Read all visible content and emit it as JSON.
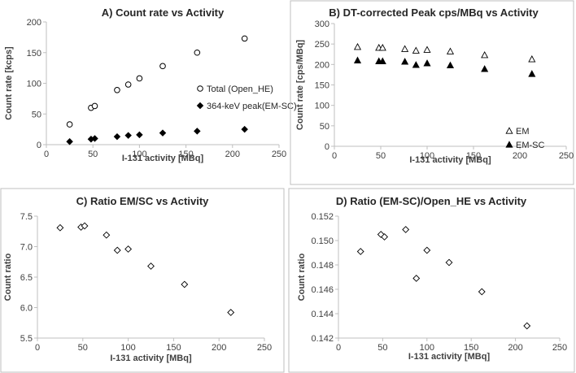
{
  "chart_data": [
    {
      "panel": "A",
      "type": "scatter",
      "title": "A)  Count rate vs Activity",
      "xlabel": "I-131 activity [MBq]",
      "ylabel": "Count rate [kcps]",
      "xlim": [
        0,
        250
      ],
      "ylim": [
        0,
        200
      ],
      "xticks": [
        0,
        50,
        100,
        150,
        200,
        250
      ],
      "yticks": [
        0,
        50,
        100,
        150,
        200
      ],
      "ytick_decimals": 0,
      "legend": "center-right",
      "series": [
        {
          "name": "Total (Open_HE)",
          "marker": "circle-open",
          "x": [
            25,
            48,
            52,
            76,
            88,
            100,
            125,
            162,
            213
          ],
          "y": [
            33,
            60,
            63,
            89,
            98,
            108,
            128,
            150,
            173
          ]
        },
        {
          "name": "364-keV peak(EM-SC)",
          "marker": "diamond-filled",
          "x": [
            25,
            48,
            52,
            76,
            88,
            100,
            125,
            162,
            213
          ],
          "y": [
            5,
            9,
            10,
            13,
            15,
            16,
            19,
            22,
            25
          ]
        }
      ]
    },
    {
      "panel": "B",
      "type": "scatter",
      "title": "B)  DT-corrected Peak cps/MBq vs Activity",
      "xlabel": "I-131 activity [MBq]",
      "ylabel": "Count rate [cps/MBq]",
      "xlim": [
        0,
        250
      ],
      "ylim": [
        0,
        300
      ],
      "xticks": [
        0,
        50,
        100,
        150,
        200,
        250
      ],
      "yticks": [
        0,
        50,
        100,
        150,
        200,
        250,
        300
      ],
      "ytick_decimals": 0,
      "legend": "bottom-right",
      "series": [
        {
          "name": "EM",
          "marker": "triangle-open",
          "x": [
            25,
            48,
            52,
            76,
            88,
            100,
            125,
            162,
            213
          ],
          "y": [
            243,
            241,
            241,
            238,
            234,
            236,
            232,
            223,
            213
          ]
        },
        {
          "name": "EM-SC",
          "marker": "triangle-filled",
          "x": [
            25,
            48,
            52,
            76,
            88,
            100,
            125,
            162,
            213
          ],
          "y": [
            210,
            208,
            208,
            207,
            199,
            203,
            198,
            189,
            177
          ]
        }
      ]
    },
    {
      "panel": "C",
      "type": "scatter",
      "title": "C)  Ratio EM/SC vs Activity",
      "xlabel": "I-131 activity [MBq]",
      "ylabel": "Count ratio",
      "xlim": [
        0,
        250
      ],
      "ylim": [
        5.5,
        7.5
      ],
      "xticks": [
        0,
        50,
        100,
        150,
        200,
        250
      ],
      "yticks": [
        5.5,
        6.0,
        6.5,
        7.0,
        7.5
      ],
      "ytick_decimals": 1,
      "legend": "none",
      "series": [
        {
          "name": "EM/SC",
          "marker": "diamond-open",
          "x": [
            25,
            48,
            52,
            76,
            88,
            100,
            125,
            162,
            213
          ],
          "y": [
            7.31,
            7.32,
            7.34,
            7.19,
            6.94,
            6.96,
            6.68,
            6.38,
            5.92
          ]
        }
      ]
    },
    {
      "panel": "D",
      "type": "scatter",
      "title": "D)  Ratio (EM-SC)/Open_HE vs Activity",
      "xlabel": "I-131 activity [MBq]",
      "ylabel": "Count ratio",
      "xlim": [
        0,
        250
      ],
      "ylim": [
        0.142,
        0.152
      ],
      "xticks": [
        0,
        50,
        100,
        150,
        200,
        250
      ],
      "yticks": [
        0.142,
        0.144,
        0.146,
        0.148,
        0.15,
        0.152
      ],
      "ytick_decimals": 3,
      "legend": "none",
      "series": [
        {
          "name": "(EM-SC)/Open_HE",
          "marker": "diamond-open",
          "x": [
            25,
            48,
            52,
            76,
            88,
            100,
            125,
            162,
            213
          ],
          "y": [
            0.1491,
            0.1505,
            0.1503,
            0.1509,
            0.1469,
            0.1492,
            0.1482,
            0.1458,
            0.143
          ]
        }
      ]
    }
  ]
}
